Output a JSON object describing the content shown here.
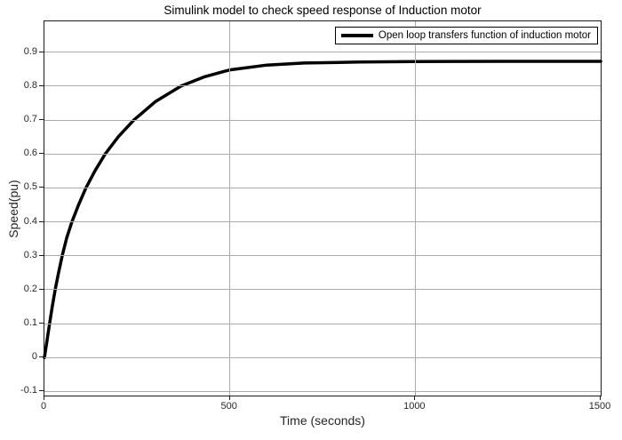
{
  "title": "Simulink model to check speed response of Induction motor",
  "legend": {
    "label": "Open loop transfers function of induction motor",
    "position": "top-right"
  },
  "axes": {
    "xlabel": "Time (seconds)",
    "ylabel": "Speed(pu)"
  },
  "colors": {
    "background": "#ffffff",
    "grid": "#ababab",
    "axis": "#1a1a1a",
    "text": "#262626",
    "curve": "#000000",
    "legend_border": "#000000"
  },
  "chart_data": {
    "type": "line",
    "title": "Simulink model to check speed response of Induction motor",
    "xlabel": "Time (seconds)",
    "ylabel": "Speed(pu)",
    "xlim": [
      0,
      1500
    ],
    "ylim": [
      -0.112,
      0.991
    ],
    "grid": true,
    "legend_position": "top-right",
    "x_ticks": [
      {
        "value": 0,
        "label": "0"
      },
      {
        "value": 500,
        "label": "500"
      },
      {
        "value": 1000,
        "label": "1000"
      },
      {
        "value": 1500,
        "label": "1500"
      }
    ],
    "y_ticks": [
      {
        "value": -0.1,
        "label": "-0.1"
      },
      {
        "value": 0,
        "label": "0"
      },
      {
        "value": 0.1,
        "label": "0.1"
      },
      {
        "value": 0.2,
        "label": "0.2"
      },
      {
        "value": 0.3,
        "label": "0.3"
      },
      {
        "value": 0.4,
        "label": "0.4"
      },
      {
        "value": 0.5,
        "label": "0.5"
      },
      {
        "value": 0.6,
        "label": "0.6"
      },
      {
        "value": 0.7,
        "label": "0.7"
      },
      {
        "value": 0.8,
        "label": "0.8"
      },
      {
        "value": 0.9,
        "label": "0.9"
      }
    ],
    "series": [
      {
        "name": "Open loop transfers function of induction motor",
        "color": "#000000",
        "line_width": 3.5,
        "x": [
          0,
          7,
          14,
          21,
          29,
          38,
          48,
          60,
          74,
          92,
          112,
          136,
          164,
          200,
          241,
          300,
          368,
          430,
          500,
          600,
          700,
          850,
          1000,
          1250,
          1500
        ],
        "y": [
          0,
          0.05,
          0.1,
          0.15,
          0.2,
          0.25,
          0.3,
          0.352,
          0.4,
          0.45,
          0.5,
          0.55,
          0.6,
          0.652,
          0.7,
          0.755,
          0.8,
          0.827,
          0.848,
          0.862,
          0.868,
          0.871,
          0.8725,
          0.873,
          0.873
        ]
      }
    ]
  }
}
